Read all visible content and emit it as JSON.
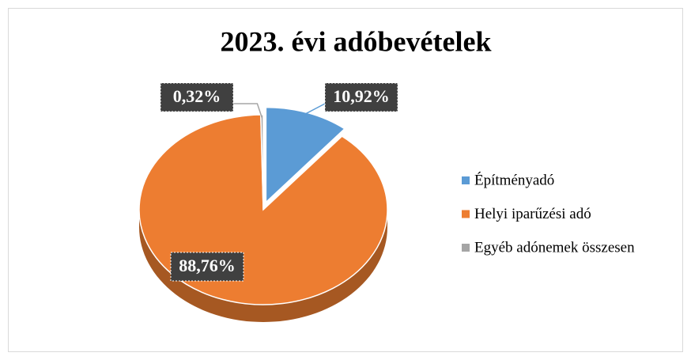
{
  "chart_data": {
    "type": "pie",
    "title": "2023. évi adóbevételek",
    "categories": [
      "Építményadó",
      "Helyi iparűzési adó",
      "Egyéb adónemek összesen"
    ],
    "values": [
      10.92,
      88.76,
      0.32
    ],
    "value_labels": [
      "10,92%",
      "88,76%",
      "0,32%"
    ],
    "colors": [
      "#5b9bd5",
      "#ed7d31",
      "#a5a5a5"
    ],
    "legend": "right"
  }
}
